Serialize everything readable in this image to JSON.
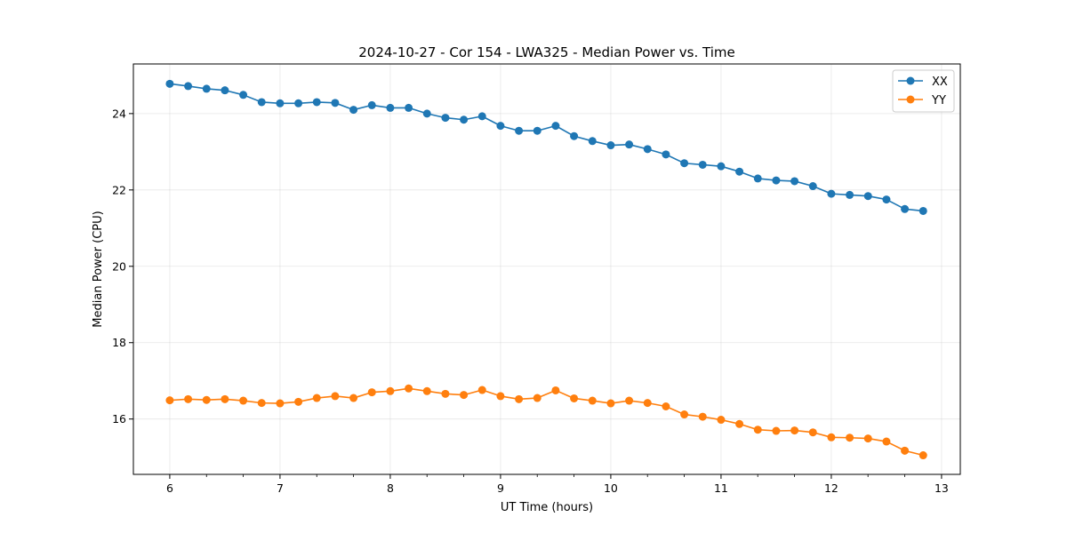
{
  "chart_data": {
    "type": "line",
    "title": "2024-10-27 - Cor 154 - LWA325 - Median Power vs. Time",
    "xlabel": "UT Time (hours)",
    "ylabel": "Median Power (CPU)",
    "xlim": [
      5.67,
      13.17
    ],
    "ylim": [
      14.55,
      25.3
    ],
    "xticks": [
      6,
      7,
      8,
      9,
      10,
      11,
      12,
      13
    ],
    "xminor_step": 0.3333,
    "yticks": [
      16,
      18,
      20,
      22,
      24
    ],
    "grid": true,
    "legend_position": "top-right",
    "x": [
      6.0,
      6.1667,
      6.3333,
      6.5,
      6.6667,
      6.8333,
      7.0,
      7.1667,
      7.3333,
      7.5,
      7.6667,
      7.8333,
      8.0,
      8.1667,
      8.3333,
      8.5,
      8.6667,
      8.8333,
      9.0,
      9.1667,
      9.3333,
      9.5,
      9.6667,
      9.8333,
      10.0,
      10.1667,
      10.3333,
      10.5,
      10.6667,
      10.8333,
      11.0,
      11.1667,
      11.3333,
      11.5,
      11.6667,
      11.8333,
      12.0,
      12.1667,
      12.3333,
      12.5,
      12.6667,
      12.8333
    ],
    "series": [
      {
        "name": "XX",
        "color": "#1f77b4",
        "values": [
          24.78,
          24.72,
          24.65,
          24.61,
          24.49,
          24.3,
          24.27,
          24.27,
          24.3,
          24.28,
          24.1,
          24.22,
          24.15,
          24.15,
          24.0,
          23.89,
          23.84,
          23.93,
          23.68,
          23.55,
          23.55,
          23.68,
          23.41,
          23.28,
          23.17,
          23.19,
          23.07,
          22.93,
          22.7,
          22.66,
          22.62,
          22.48,
          22.3,
          22.25,
          22.23,
          22.1,
          21.9,
          21.87,
          21.84,
          21.75,
          21.5,
          21.45
        ]
      },
      {
        "name": "YY",
        "color": "#ff7f0e",
        "values": [
          16.49,
          16.52,
          16.5,
          16.52,
          16.48,
          16.42,
          16.41,
          16.45,
          16.55,
          16.6,
          16.55,
          16.7,
          16.73,
          16.8,
          16.73,
          16.66,
          16.63,
          16.76,
          16.6,
          16.52,
          16.55,
          16.75,
          16.54,
          16.48,
          16.41,
          16.48,
          16.42,
          16.33,
          16.12,
          16.06,
          15.98,
          15.87,
          15.72,
          15.69,
          15.7,
          15.65,
          15.52,
          15.51,
          15.49,
          15.41,
          15.17,
          15.05
        ]
      }
    ]
  }
}
